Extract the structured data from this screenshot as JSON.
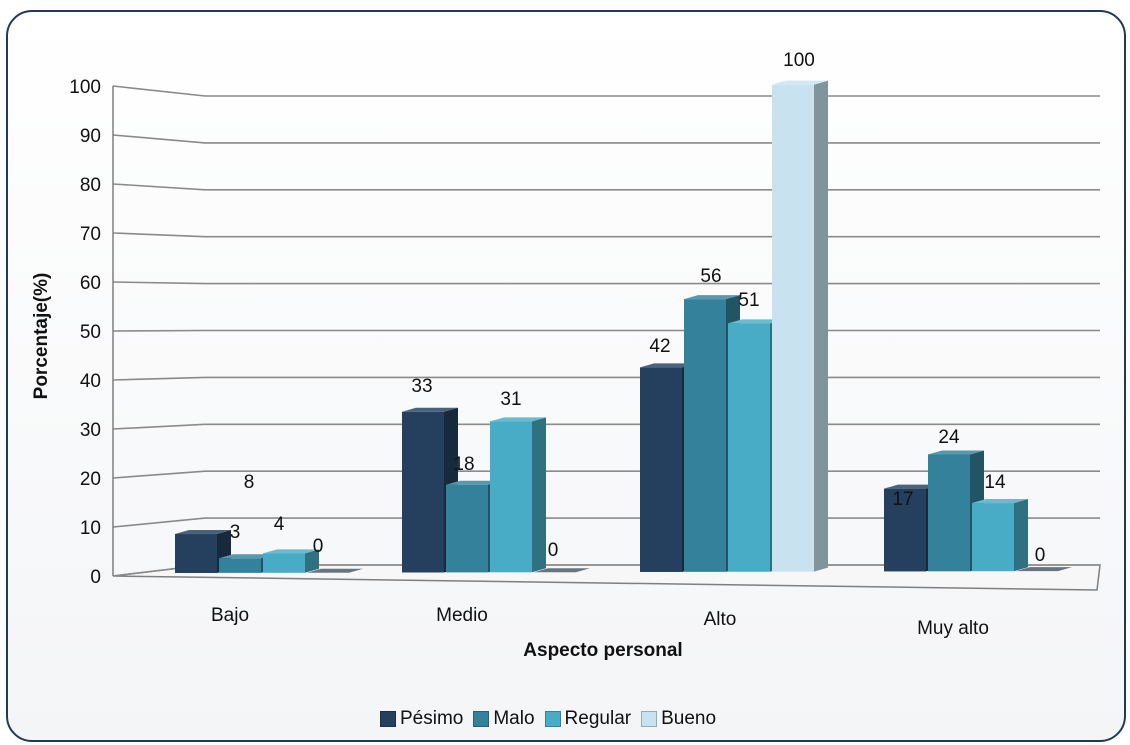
{
  "chart_data": {
    "type": "bar",
    "categories": [
      "Bajo",
      "Medio",
      "Alto",
      "Muy alto"
    ],
    "series": [
      {
        "name": "Pésimo",
        "values": [
          8,
          33,
          42,
          17
        ],
        "color": "#24405e"
      },
      {
        "name": "Malo",
        "values": [
          3,
          18,
          56,
          24
        ],
        "color": "#34819b"
      },
      {
        "name": "Regular",
        "values": [
          4,
          31,
          51,
          14
        ],
        "color": "#49acc6"
      },
      {
        "name": "Bueno",
        "values": [
          0,
          0,
          100,
          0
        ],
        "color": "#c8e3ef"
      }
    ],
    "xlabel": "Aspecto personal",
    "ylabel": "Porcentaje(%)",
    "ylim": [
      0,
      100
    ],
    "yticks": [
      0,
      10,
      20,
      30,
      40,
      50,
      60,
      70,
      80,
      90,
      100
    ],
    "grid": true,
    "legend_position": "bottom"
  }
}
